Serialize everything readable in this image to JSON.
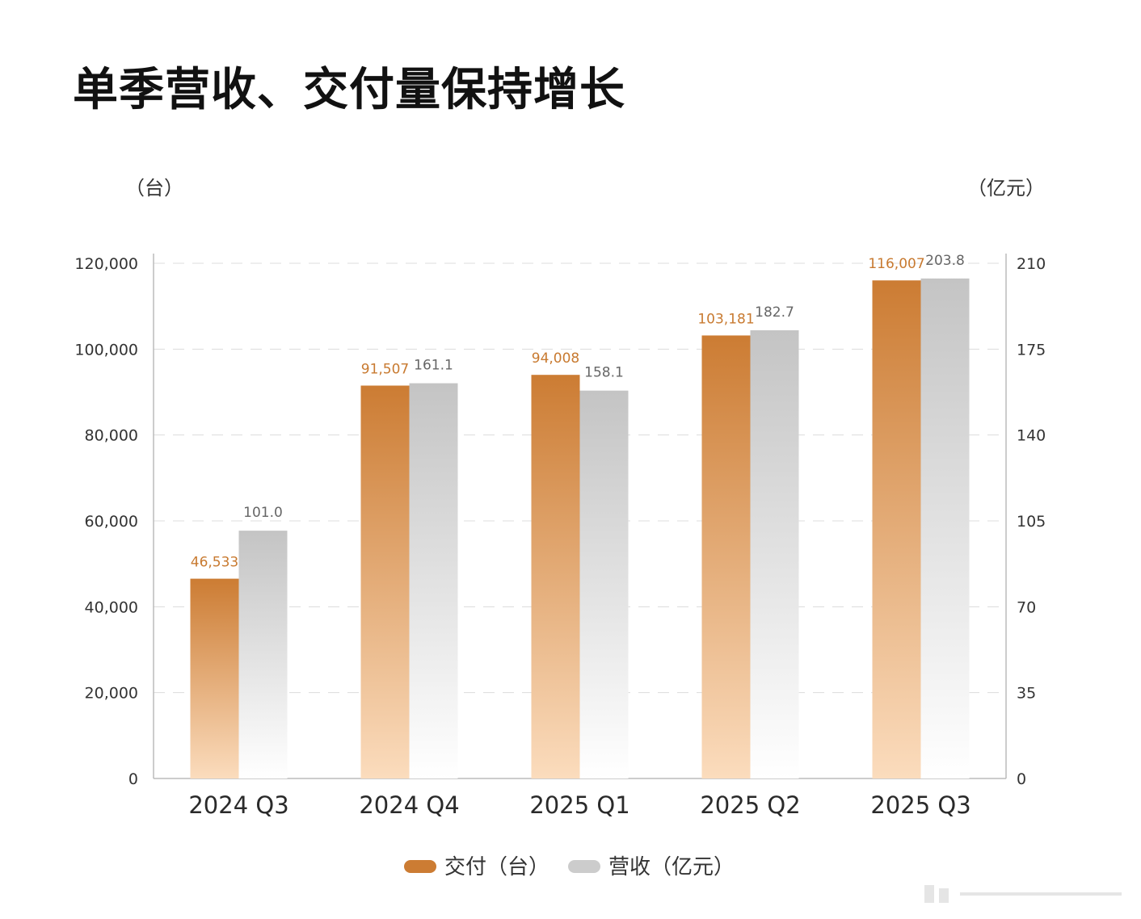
{
  "title": "单季营收、交付量保持增长",
  "chart_data": {
    "type": "bar",
    "title": "单季营收、交付量保持增长",
    "categories": [
      "2024 Q3",
      "2024 Q4",
      "2025 Q1",
      "2025 Q2",
      "2025 Q3"
    ],
    "series": [
      {
        "name": "交付（台）",
        "axis": "left",
        "values": [
          46533,
          91507,
          94008,
          103181,
          116007
        ],
        "labels": [
          "46,533",
          "91,507",
          "94,008",
          "103,181",
          "116,007"
        ],
        "color_top": "#cc7c33",
        "color_bottom": "#fbdcbd",
        "label_color": "#c87a30"
      },
      {
        "name": "营收（亿元）",
        "axis": "right",
        "values": [
          101.0,
          161.1,
          158.1,
          182.7,
          203.8
        ],
        "labels": [
          "101.0",
          "161.1",
          "158.1",
          "182.7",
          "203.8"
        ],
        "color_top": "#c4c4c4",
        "color_bottom": "#ffffff",
        "label_color": "#666666"
      }
    ],
    "y_left": {
      "unit": "（台）",
      "range": [
        0,
        120000
      ],
      "ticks": [
        0,
        20000,
        40000,
        60000,
        80000,
        100000,
        120000
      ],
      "tick_labels": [
        "0",
        "20,000",
        "40,000",
        "60,000",
        "80,000",
        "100,000",
        "120,000"
      ]
    },
    "y_right": {
      "unit": "（亿元）",
      "range": [
        0,
        210
      ],
      "ticks": [
        0,
        35,
        70,
        105,
        140,
        175,
        210
      ],
      "tick_labels": [
        "0",
        "35",
        "70",
        "105",
        "140",
        "175",
        "210"
      ]
    },
    "grid": "dashed",
    "legend": "bottom-center",
    "legend_items": [
      {
        "label": "交付（台）",
        "color": "#cc7c33"
      },
      {
        "label": "营收（亿元）",
        "color": "#cccccc"
      }
    ]
  }
}
